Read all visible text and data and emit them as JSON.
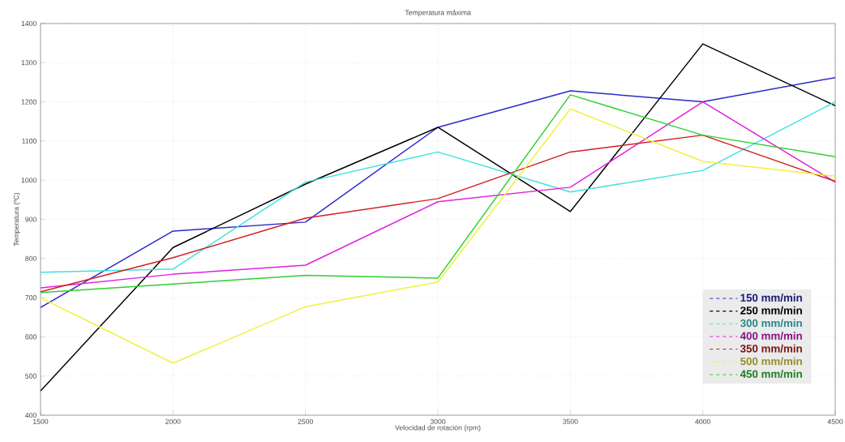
{
  "chart_data": {
    "type": "line",
    "title": "Temperatura máxima",
    "xlabel": "Velocidad de rotación (rpm)",
    "ylabel": "Temperatura (ºC)",
    "x": [
      1500,
      2000,
      2500,
      3000,
      3500,
      4000,
      4500
    ],
    "xlim": [
      1500,
      4500
    ],
    "xticks": [
      1500,
      2000,
      2500,
      3000,
      3500,
      4000,
      4500
    ],
    "ylim": [
      400,
      1400
    ],
    "yticks": [
      400,
      500,
      600,
      700,
      800,
      900,
      1000,
      1100,
      1200,
      1300,
      1400
    ],
    "grid": true,
    "legend": "bottom right",
    "line_style": "solid",
    "series": [
      {
        "name": "150 mm/min",
        "color": "#2a2ac8",
        "values": [
          675,
          870,
          893,
          1135,
          1228,
          1200,
          1262
        ]
      },
      {
        "name": "250 mm/min",
        "color": "#000000",
        "values": [
          462,
          828,
          990,
          1135,
          920,
          1348,
          1190
        ]
      },
      {
        "name": "300 mm/min",
        "color": "#40e0e0",
        "values": [
          765,
          773,
          995,
          1072,
          970,
          1025,
          1200
        ]
      },
      {
        "name": "400 mm/min",
        "color": "#e020e0",
        "values": [
          725,
          760,
          783,
          945,
          982,
          1200,
          995
        ]
      },
      {
        "name": "350 mm/min",
        "color": "#d02020",
        "values": [
          715,
          802,
          903,
          953,
          1072,
          1115,
          997
        ]
      },
      {
        "name": "500 mm/min",
        "color": "#f0f040",
        "values": [
          700,
          533,
          677,
          740,
          1182,
          1048,
          1010
        ]
      },
      {
        "name": "450 mm/min",
        "color": "#30d030",
        "values": [
          713,
          735,
          757,
          750,
          1218,
          1115,
          1060
        ]
      }
    ]
  }
}
